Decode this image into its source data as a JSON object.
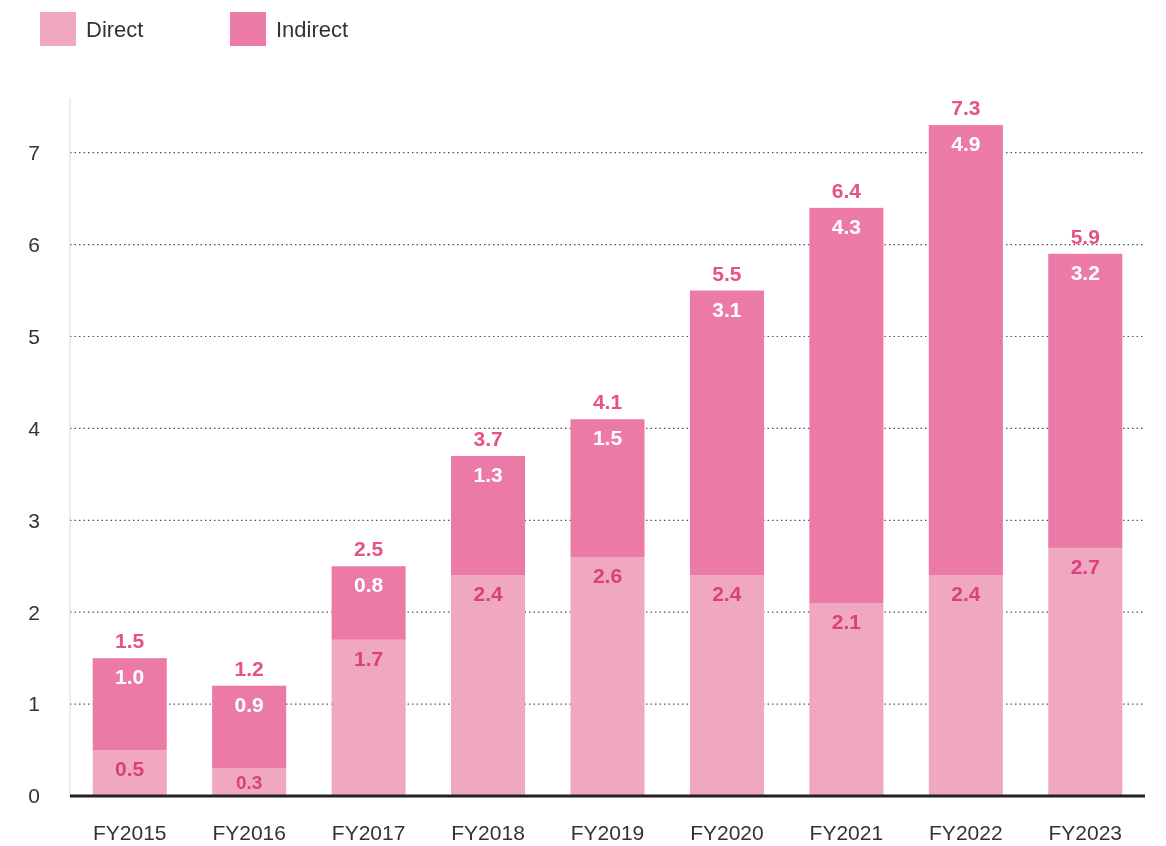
{
  "chart_data": {
    "type": "bar",
    "stacked": true,
    "categories": [
      "FY2015",
      "FY2016",
      "FY2017",
      "FY2018",
      "FY2019",
      "FY2020",
      "FY2021",
      "FY2022",
      "FY2023"
    ],
    "series": [
      {
        "name": "Direct",
        "color": "#f0a8c0",
        "values": [
          0.5,
          0.3,
          1.7,
          2.4,
          2.6,
          2.4,
          2.1,
          2.4,
          2.7
        ],
        "value_labels": [
          "0.5",
          "0.3",
          "1.7",
          "2.4",
          "2.6",
          "2.4",
          "2.1",
          "2.4",
          "2.7"
        ]
      },
      {
        "name": "Indirect",
        "color": "#eb7aa6",
        "values": [
          1.0,
          0.9,
          0.8,
          1.3,
          1.5,
          3.1,
          4.3,
          4.9,
          3.2
        ],
        "value_labels": [
          "1.0",
          "0.9",
          "0.8",
          "1.3",
          "1.5",
          "3.1",
          "4.3",
          "4.9",
          "3.2"
        ]
      }
    ],
    "totals": [
      "1.5",
      "1.2",
      "2.5",
      "3.7",
      "4.1",
      "5.5",
      "6.4",
      "7.3",
      "5.9"
    ],
    "ylim": [
      0,
      7.6
    ],
    "yticks": [
      0,
      1,
      2,
      3,
      4,
      5,
      6,
      7
    ],
    "grid": "y",
    "legend": "top left"
  }
}
